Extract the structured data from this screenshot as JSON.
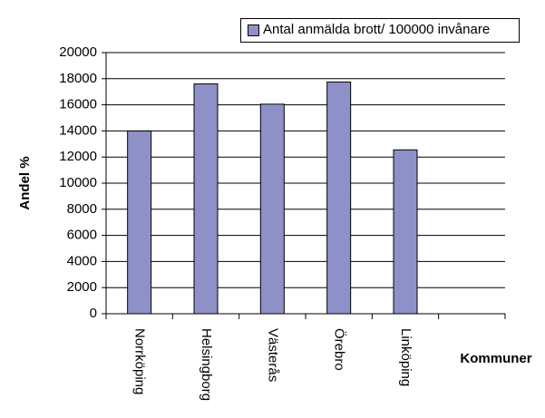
{
  "chart_data": {
    "type": "bar",
    "categories": [
      "Norrköping",
      "Helsingborg",
      "Västerås",
      "Örebro",
      "Linköping",
      null
    ],
    "series": [
      {
        "name": "Antal anmälda brott/ 100000 invånare",
        "color": "#8e90c8",
        "values": [
          14000,
          17600,
          16050,
          17750,
          12550,
          null
        ]
      }
    ],
    "ylabel": "Andel %",
    "xlabel": "Kommuner",
    "ylim": [
      0,
      20000
    ],
    "yticks": [
      0,
      2000,
      4000,
      6000,
      8000,
      10000,
      12000,
      14000,
      16000,
      18000,
      20000
    ],
    "grid": true,
    "legend": "top-right"
  }
}
